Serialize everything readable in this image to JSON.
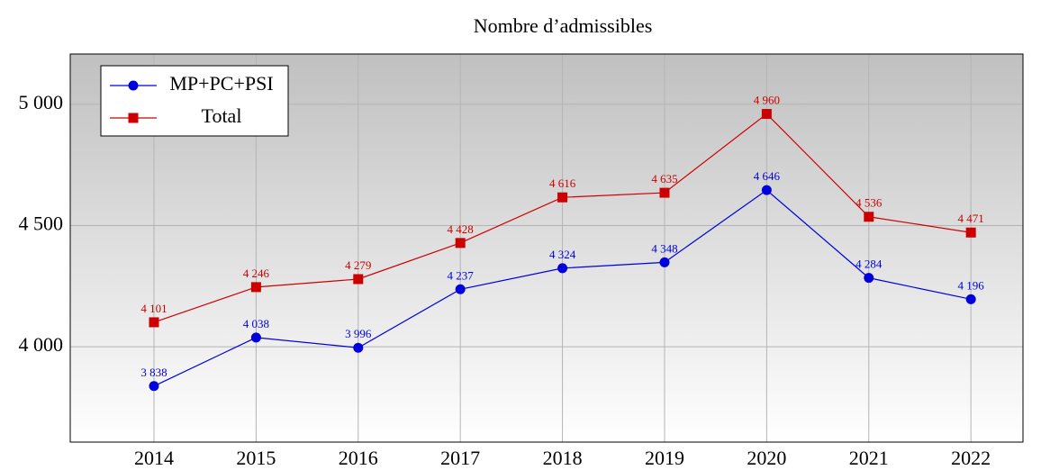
{
  "chart_data": {
    "type": "line",
    "title": "Nombre d’admissibles",
    "x": [
      2014,
      2015,
      2016,
      2017,
      2018,
      2019,
      2020,
      2021,
      2022
    ],
    "xlim": [
      2013.18,
      2022.51
    ],
    "xticks": [
      2014,
      2015,
      2016,
      2017,
      2018,
      2019,
      2020,
      2021,
      2022
    ],
    "ylim": [
      3607,
      5207
    ],
    "yticks": [
      {
        "value": 4000,
        "label": "4 000"
      },
      {
        "value": 4500,
        "label": "4 500"
      },
      {
        "value": 5000,
        "label": "5 000"
      }
    ],
    "grid": true,
    "legend": "upper left",
    "series": [
      {
        "name": "MP+PC+PSI",
        "color": "#0000dd",
        "marker": "circle",
        "values": [
          3838,
          4038,
          3996,
          4237,
          4324,
          4348,
          4646,
          4284,
          4196
        ],
        "value_labels": [
          "3 838",
          "4 038",
          "3 996",
          "4 237",
          "4 324",
          "4 348",
          "4 646",
          "4 284",
          "4 196"
        ]
      },
      {
        "name": "Total",
        "color": "#cc0000",
        "marker": "square",
        "values": [
          4101,
          4246,
          4279,
          4428,
          4616,
          4635,
          4960,
          4536,
          4471
        ],
        "value_labels": [
          "4 101",
          "4 246",
          "4 279",
          "4 428",
          "4 616",
          "4 635",
          "4 960",
          "4 536",
          "4 471"
        ]
      }
    ]
  }
}
